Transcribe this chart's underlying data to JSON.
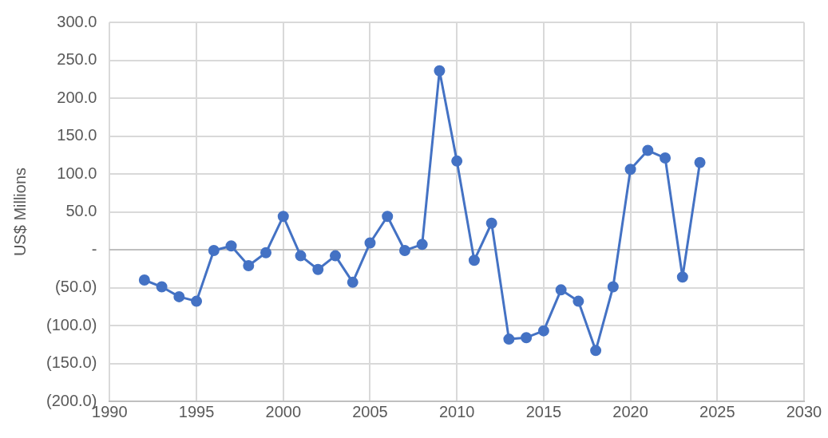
{
  "chart_data": {
    "type": "line",
    "ylabel": "US$ Millions",
    "x": [
      1992,
      1993,
      1994,
      1995,
      1996,
      1997,
      1998,
      1999,
      2000,
      2001,
      2002,
      2003,
      2004,
      2005,
      2006,
      2007,
      2008,
      2009,
      2010,
      2011,
      2012,
      2013,
      2014,
      2015,
      2016,
      2017,
      2018,
      2019,
      2020,
      2021,
      2022,
      2023,
      2024
    ],
    "series": [
      {
        "color": "#4472c4",
        "values": [
          -40,
          -49,
          -62,
          -68,
          -1,
          5,
          -21,
          -4,
          44,
          -8,
          -26,
          -8,
          -43,
          9,
          44,
          -1,
          7,
          236,
          117,
          -14,
          35,
          -118,
          -116,
          -107,
          -53,
          -68,
          -133,
          -49,
          106,
          131,
          121,
          -36,
          115
        ]
      }
    ],
    "xlim": [
      1990,
      2030
    ],
    "xticks": [
      1990,
      1995,
      2000,
      2005,
      2010,
      2015,
      2020,
      2025,
      2030
    ],
    "ylim": [
      -200,
      300
    ],
    "yticks": [
      {
        "value": -200,
        "label": "(200.0)"
      },
      {
        "value": -150,
        "label": "(150.0)"
      },
      {
        "value": -100,
        "label": "(100.0)"
      },
      {
        "value": -50,
        "label": "(50.0)"
      },
      {
        "value": 0,
        "label": "-"
      },
      {
        "value": 50,
        "label": "50.0"
      },
      {
        "value": 100,
        "label": "100.0"
      },
      {
        "value": 150,
        "label": "150.0"
      },
      {
        "value": 200,
        "label": "200.0"
      },
      {
        "value": 250,
        "label": "250.0"
      },
      {
        "value": 300,
        "label": "300.0"
      }
    ],
    "grid": true,
    "marker": "circle",
    "line_style": "solid",
    "legend": false
  }
}
